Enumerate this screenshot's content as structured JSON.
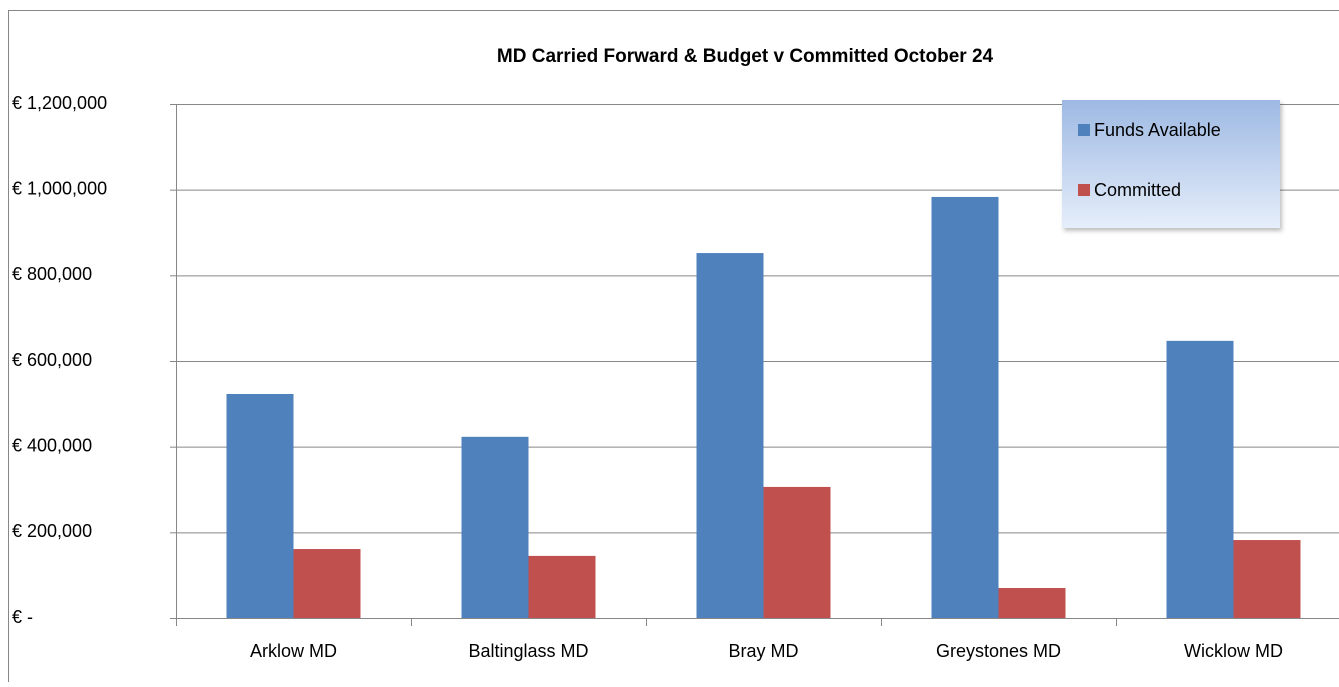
{
  "chart_data": {
    "type": "bar",
    "title": "MD Carried Forward & Budget v Committed October 24",
    "categories": [
      "Arklow MD",
      "Baltinglass MD",
      "Bray MD",
      "Greystones MD",
      "Wicklow MD"
    ],
    "series": [
      {
        "name": "Funds Available",
        "color": "#4f81bd",
        "values": [
          523000,
          423000,
          852000,
          983000,
          647000
        ]
      },
      {
        "name": "Committed",
        "color": "#c0504d",
        "values": [
          161000,
          145000,
          306000,
          70000,
          182000
        ]
      }
    ],
    "ylim": [
      0,
      1200000
    ],
    "yticks": [
      {
        "value": 0,
        "label": "€ -"
      },
      {
        "value": 200000,
        "label": "€ 200,000"
      },
      {
        "value": 400000,
        "label": "€ 400,000"
      },
      {
        "value": 600000,
        "label": "€ 600,000"
      },
      {
        "value": 800000,
        "label": "€ 800,000"
      },
      {
        "value": 1000000,
        "label": "€ 1,000,000"
      },
      {
        "value": 1200000,
        "label": "€ 1,200,000"
      }
    ],
    "grid": true,
    "legend": "top-right"
  }
}
